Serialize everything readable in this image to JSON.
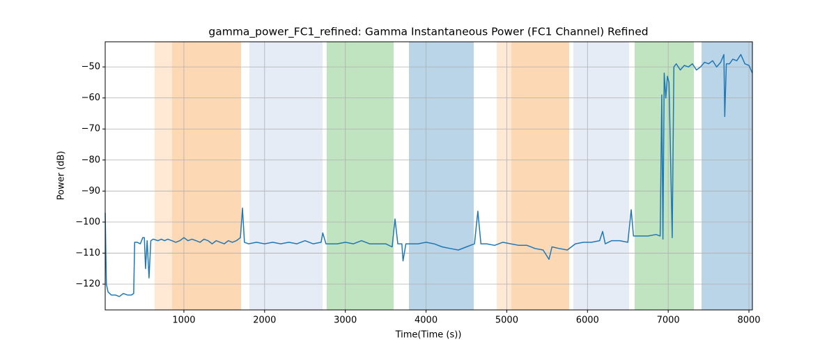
{
  "chart_data": {
    "type": "line",
    "title": "gamma_power_FC1_refined: Gamma Instantaneous Power (FC1 Channel) Refined",
    "xlabel": "Time(Time (s))",
    "ylabel": "Power (dB)",
    "color": "#1f77b4",
    "grid": true,
    "xlim": [
      25,
      8043
    ],
    "ylim": [
      -128.3,
      -41.9
    ],
    "xticks": [
      1000,
      2000,
      3000,
      4000,
      5000,
      6000,
      7000,
      8000
    ],
    "yticks": [
      {
        "value": -120,
        "label": "−120"
      },
      {
        "value": -110,
        "label": "−110"
      },
      {
        "value": -100,
        "label": "−100"
      },
      {
        "value": -90,
        "label": "−90"
      },
      {
        "value": -80,
        "label": "−80"
      },
      {
        "value": -70,
        "label": "−70"
      },
      {
        "value": -60,
        "label": "−60"
      },
      {
        "value": -50,
        "label": "−50"
      }
    ],
    "spans": [
      {
        "start": 637,
        "end": 853,
        "color": "#ffe8d4"
      },
      {
        "start": 853,
        "end": 1708,
        "color": "#fdd8b5"
      },
      {
        "start": 1811,
        "end": 2718,
        "color": "#e5ecf6"
      },
      {
        "start": 2769,
        "end": 3598,
        "color": "#c0e3c0"
      },
      {
        "start": 3788,
        "end": 4591,
        "color": "#bad4e8"
      },
      {
        "start": 4875,
        "end": 5057,
        "color": "#ffe8d4"
      },
      {
        "start": 5057,
        "end": 5773,
        "color": "#fdd8b5"
      },
      {
        "start": 5825,
        "end": 6515,
        "color": "#e5ecf6"
      },
      {
        "start": 6584,
        "end": 7318,
        "color": "#c0e3c0"
      },
      {
        "start": 7413,
        "end": 8043,
        "color": "#bad4e8"
      }
    ],
    "x": [
      25,
      40,
      60,
      100,
      150,
      200,
      250,
      300,
      350,
      378,
      390,
      420,
      460,
      490,
      510,
      525,
      545,
      568,
      590,
      620,
      680,
      720,
      760,
      800,
      850,
      900,
      950,
      1000,
      1050,
      1100,
      1150,
      1200,
      1250,
      1300,
      1350,
      1400,
      1450,
      1500,
      1550,
      1600,
      1650,
      1700,
      1725,
      1750,
      1800,
      1900,
      2000,
      2100,
      2200,
      2300,
      2400,
      2500,
      2600,
      2700,
      2720,
      2760,
      2800,
      2900,
      3000,
      3100,
      3200,
      3300,
      3400,
      3500,
      3580,
      3615,
      3650,
      3700,
      3715,
      3750,
      3800,
      3900,
      4000,
      4100,
      4200,
      4300,
      4400,
      4500,
      4600,
      4642,
      4680,
      4750,
      4850,
      4950,
      5050,
      5150,
      5250,
      5350,
      5450,
      5523,
      5560,
      5650,
      5750,
      5850,
      5950,
      6050,
      6150,
      6187,
      6220,
      6300,
      6400,
      6500,
      6541,
      6570,
      6650,
      6750,
      6850,
      6900,
      6920,
      6935,
      6950,
      6970,
      6990,
      7010,
      7050,
      7070,
      7100,
      7150,
      7200,
      7250,
      7300,
      7350,
      7400,
      7450,
      7500,
      7550,
      7600,
      7650,
      7690,
      7700,
      7720,
      7760,
      7800,
      7850,
      7900,
      7950,
      8000,
      8043
    ],
    "values": [
      -97,
      -120,
      -122.5,
      -123.5,
      -123.5,
      -124,
      -123,
      -123.5,
      -123.5,
      -123,
      -106.5,
      -106.5,
      -107,
      -105,
      -105,
      -115,
      -106,
      -118,
      -106,
      -105.5,
      -106,
      -105.5,
      -106,
      -105.5,
      -106,
      -106.5,
      -106,
      -105,
      -106,
      -105.5,
      -106,
      -106.5,
      -105.5,
      -106,
      -107,
      -106,
      -106.5,
      -107,
      -106,
      -106.5,
      -106,
      -105,
      -95.5,
      -106.5,
      -107,
      -106.5,
      -107,
      -106.5,
      -107,
      -106.5,
      -107,
      -106,
      -107,
      -106.5,
      -103.5,
      -107,
      -107,
      -107,
      -106.5,
      -107,
      -106,
      -107,
      -107,
      -107,
      -108,
      -99,
      -107,
      -107,
      -112.5,
      -107,
      -107,
      -107,
      -106.5,
      -107,
      -108,
      -108.5,
      -109,
      -108,
      -107,
      -96.5,
      -107,
      -107,
      -107.5,
      -106.5,
      -107,
      -107.5,
      -107.5,
      -108.5,
      -109,
      -112,
      -108,
      -108.5,
      -109,
      -107,
      -106.5,
      -106.5,
      -106,
      -103,
      -107,
      -106,
      -106,
      -106.5,
      -96,
      -104.5,
      -104.5,
      -104.5,
      -104,
      -104.5,
      -59,
      -105.5,
      -52,
      -60,
      -53,
      -55,
      -105,
      -50,
      -49,
      -51,
      -49.5,
      -50,
      -49,
      -51,
      -50,
      -48.5,
      -49,
      -48,
      -50,
      -48.5,
      -46,
      -66,
      -49,
      -49,
      -47.5,
      -48,
      -46,
      -49,
      -49.5,
      -52
    ]
  }
}
